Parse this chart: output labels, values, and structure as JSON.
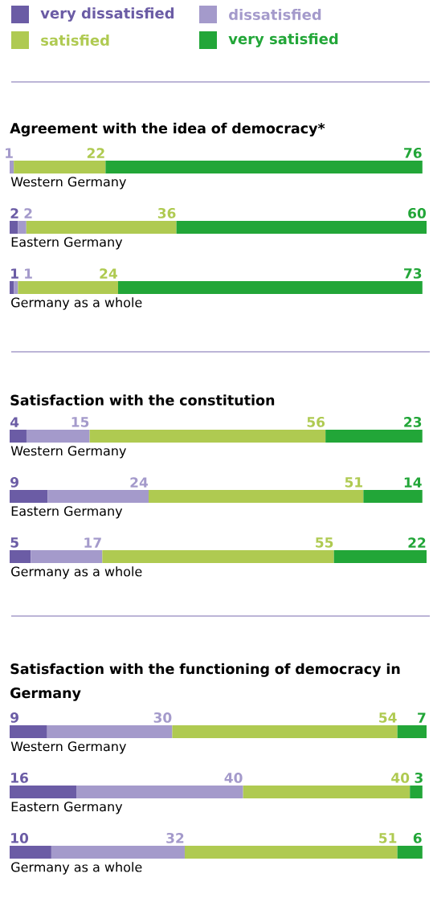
{
  "chart_data": [
    {
      "type": "bar",
      "orientation": "horizontal",
      "stacked": true,
      "data_labels": true,
      "legend": "top",
      "title": "Agreement with the idea of democracy*",
      "categories": [
        "Western Germany",
        "Eastern Germany",
        "Germany as a whole"
      ],
      "series": [
        {
          "name": "very dissatisfied",
          "color": "#6b5ca5",
          "values": [
            null,
            2,
            1
          ]
        },
        {
          "name": "dissatisfied",
          "color": "#a49acb",
          "values": [
            1,
            2,
            1
          ]
        },
        {
          "name": "satisfied",
          "color": "#afca51",
          "values": [
            22,
            36,
            24
          ]
        },
        {
          "name": "very satisfied",
          "color": "#22a638",
          "values": [
            76,
            60,
            73
          ]
        }
      ]
    },
    {
      "type": "bar",
      "orientation": "horizontal",
      "stacked": true,
      "data_labels": true,
      "title": "Satisfaction with the constitution",
      "categories": [
        "Western Germany",
        "Eastern Germany",
        "Germany as a whole"
      ],
      "series": [
        {
          "color": "#6b5ca5",
          "values": [
            4,
            9,
            5
          ]
        },
        {
          "color": "#a49acb",
          "values": [
            15,
            24,
            17
          ]
        },
        {
          "color": "#afca51",
          "values": [
            56,
            51,
            55
          ]
        },
        {
          "color": "#22a638",
          "values": [
            23,
            14,
            22
          ]
        }
      ]
    },
    {
      "type": "bar",
      "orientation": "horizontal",
      "stacked": true,
      "data_labels": true,
      "title": "Satisfaction with the functioning of democracy in Germany",
      "categories": [
        "Western Germany",
        "Eastern Germany",
        "Germany as a whole"
      ],
      "series": [
        {
          "color": "#6b5ca5",
          "values": [
            9,
            16,
            10
          ]
        },
        {
          "color": "#a49acb",
          "values": [
            30,
            40,
            32
          ]
        },
        {
          "color": "#afca51",
          "values": [
            54,
            40,
            51
          ]
        },
        {
          "color": "#22a638",
          "values": [
            7,
            3,
            6
          ]
        }
      ]
    }
  ]
}
